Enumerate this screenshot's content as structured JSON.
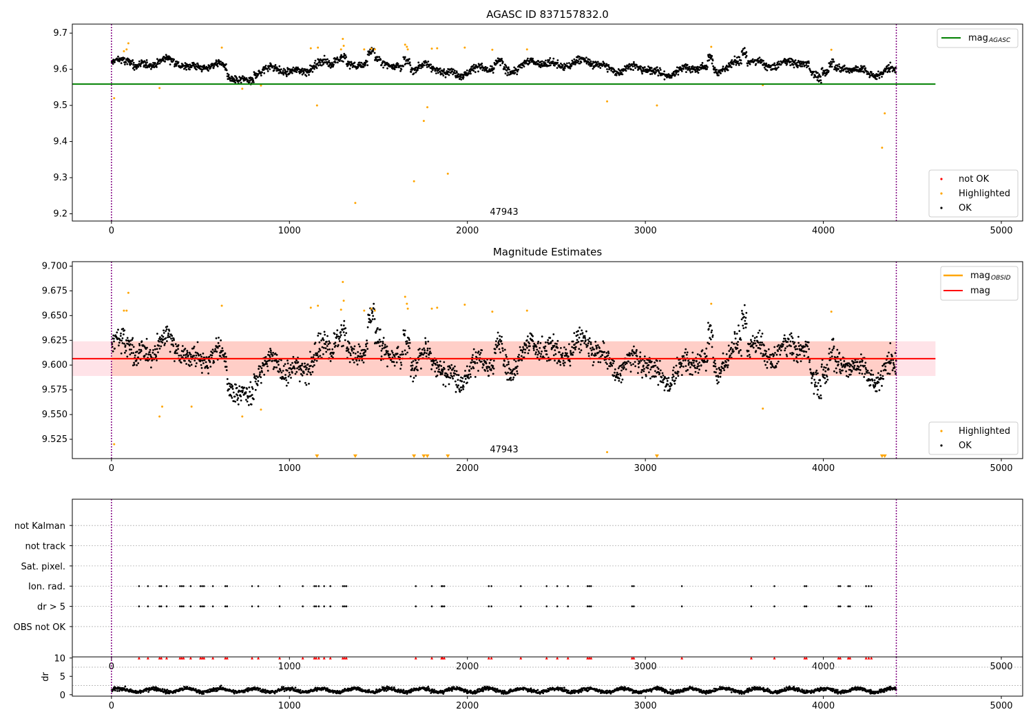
{
  "chart_data": [
    {
      "type": "scatter",
      "title": "AGASC ID 837157832.0",
      "xlim": [
        -220,
        5120
      ],
      "ylim": [
        9.18,
        9.725
      ],
      "x_ticks": [
        0,
        1000,
        2000,
        3000,
        4000,
        5000
      ],
      "y_ticks": [
        9.2,
        9.3,
        9.4,
        9.5,
        9.6,
        9.7
      ],
      "y_tick_labels": [
        "9.2",
        "9.3",
        "9.4",
        "9.5",
        "9.6",
        "9.7"
      ],
      "vlines": [
        0,
        4410
      ],
      "hline": {
        "name": "mag_AGASC",
        "value": 9.559,
        "x_start": -220,
        "x_end": 4630,
        "color": "#008000"
      },
      "annotation": {
        "text": "47943",
        "x": 2130,
        "y": 9.2
      },
      "legend_top": [
        {
          "label": "mag",
          "sub": "AGASC",
          "color": "#008000"
        }
      ],
      "legend_bottom": [
        {
          "label": "not OK",
          "color": "#ff0000"
        },
        {
          "label": "Highlighted",
          "color": "#ffa500"
        },
        {
          "label": "OK",
          "color": "#000000"
        }
      ],
      "highlighted_points": [
        [
          15,
          9.52
        ],
        [
          70,
          9.65
        ],
        [
          85,
          9.655
        ],
        [
          95,
          9.672
        ],
        [
          270,
          9.548
        ],
        [
          620,
          9.66
        ],
        [
          735,
          9.546
        ],
        [
          840,
          9.555
        ],
        [
          1120,
          9.658
        ],
        [
          1155,
          9.5
        ],
        [
          1160,
          9.66
        ],
        [
          1290,
          9.655
        ],
        [
          1300,
          9.684
        ],
        [
          1305,
          9.665
        ],
        [
          1370,
          9.23
        ],
        [
          1420,
          9.655
        ],
        [
          1460,
          9.657
        ],
        [
          1480,
          9.655
        ],
        [
          1650,
          9.668
        ],
        [
          1660,
          9.662
        ],
        [
          1665,
          9.655
        ],
        [
          1700,
          9.29
        ],
        [
          1755,
          9.457
        ],
        [
          1775,
          9.495
        ],
        [
          1800,
          9.657
        ],
        [
          1830,
          9.658
        ],
        [
          1890,
          9.311
        ],
        [
          1985,
          9.66
        ],
        [
          2140,
          9.654
        ],
        [
          2335,
          9.655
        ],
        [
          2785,
          9.511
        ],
        [
          3065,
          9.5
        ],
        [
          3370,
          9.662
        ],
        [
          3660,
          9.556
        ],
        [
          4045,
          9.654
        ],
        [
          4330,
          9.383
        ],
        [
          4345,
          9.478
        ]
      ]
    },
    {
      "type": "scatter",
      "title": "Magnitude Estimates",
      "xlim": [
        -220,
        5120
      ],
      "ylim": [
        9.5055,
        9.7045
      ],
      "x_ticks": [
        0,
        1000,
        2000,
        3000,
        4000,
        5000
      ],
      "y_ticks": [
        9.525,
        9.55,
        9.575,
        9.6,
        9.625,
        9.65,
        9.675,
        9.7
      ],
      "y_tick_labels": [
        "9.525",
        "9.550",
        "9.575",
        "9.600",
        "9.625",
        "9.650",
        "9.675",
        "9.700"
      ],
      "vlines": [
        0,
        4410
      ],
      "mag_line": {
        "value": 9.6065,
        "x_start": -220,
        "x_end": 4630,
        "color": "#ff0000"
      },
      "mag_obsid_line": {
        "value": 9.6065,
        "x_start": -5,
        "x_end": 4410,
        "color": "#ffa500"
      },
      "band": {
        "low": 9.589,
        "high": 9.624,
        "x_start": -220,
        "x_end": 4630
      },
      "annotation": {
        "text": "47943",
        "x": 2130,
        "y": 9.5105
      },
      "legend_top": [
        {
          "label": "mag",
          "sub": "OBSID",
          "color": "#ffa500"
        },
        {
          "label": "mag",
          "sub": "",
          "color": "#ff0000"
        }
      ],
      "legend_bottom": [
        {
          "label": "Highlighted",
          "color": "#ffa500"
        },
        {
          "label": "OK",
          "color": "#000000"
        }
      ],
      "highlighted_points": [
        [
          15,
          9.52
        ],
        [
          70,
          9.655
        ],
        [
          85,
          9.655
        ],
        [
          95,
          9.673
        ],
        [
          270,
          9.548
        ],
        [
          285,
          9.558
        ],
        [
          450,
          9.558
        ],
        [
          620,
          9.66
        ],
        [
          735,
          9.548
        ],
        [
          840,
          9.555
        ],
        [
          1120,
          9.658
        ],
        [
          1160,
          9.66
        ],
        [
          1290,
          9.656
        ],
        [
          1300,
          9.684
        ],
        [
          1305,
          9.665
        ],
        [
          1420,
          9.655
        ],
        [
          1460,
          9.657
        ],
        [
          1480,
          9.655
        ],
        [
          1650,
          9.669
        ],
        [
          1660,
          9.662
        ],
        [
          1665,
          9.657
        ],
        [
          1800,
          9.657
        ],
        [
          1830,
          9.658
        ],
        [
          1985,
          9.661
        ],
        [
          2140,
          9.654
        ],
        [
          2335,
          9.655
        ],
        [
          2785,
          9.512
        ],
        [
          3370,
          9.662
        ],
        [
          3660,
          9.556
        ],
        [
          4045,
          9.654
        ]
      ],
      "clipped_markers_x": [
        1155,
        1370,
        1700,
        1755,
        1775,
        1890,
        3065,
        4330,
        4345
      ]
    },
    {
      "type": "scatter",
      "title": "",
      "xlim": [
        -220,
        5120
      ],
      "ylim": [
        -0.5,
        7.3
      ],
      "x_ticks": [
        0,
        1000,
        2000,
        3000,
        4000,
        5000
      ],
      "y_ticks": [
        6,
        5,
        4,
        3,
        2,
        1
      ],
      "category_labels": [
        "not Kalman",
        "not track",
        "Sat. pixel.",
        "Ion. rad.",
        "dr > 5",
        "OBS not OK"
      ],
      "vlines": [
        0,
        4410
      ],
      "flagged_x": [
        155,
        205,
        270,
        280,
        310,
        385,
        395,
        405,
        445,
        500,
        510,
        520,
        570,
        640,
        650,
        790,
        825,
        945,
        1075,
        1140,
        1150,
        1165,
        1195,
        1230,
        1300,
        1310,
        1320,
        1710,
        1800,
        1855,
        1860,
        1870,
        2120,
        2135,
        2300,
        2445,
        2505,
        2565,
        2675,
        2685,
        2695,
        2925,
        2935,
        3205,
        3595,
        3725,
        3895,
        3905,
        4085,
        4095,
        4140,
        4150,
        4240,
        4255,
        4270
      ],
      "flag_rows": [
        "Ion. rad.",
        "dr > 5"
      ]
    },
    {
      "type": "scatter",
      "title": "",
      "ylabel": "dr",
      "xlim": [
        -220,
        5120
      ],
      "ylim": [
        -0.4,
        10.3
      ],
      "x_ticks": [
        0,
        1000,
        2000,
        3000,
        4000,
        5000
      ],
      "y_ticks": [
        0,
        5,
        10
      ],
      "vlines": [
        0,
        4410
      ],
      "dr_range": [
        0.3,
        2.5
      ],
      "clipped_markers_note": "red markers at dr = 10 for points with dr > 10"
    }
  ]
}
